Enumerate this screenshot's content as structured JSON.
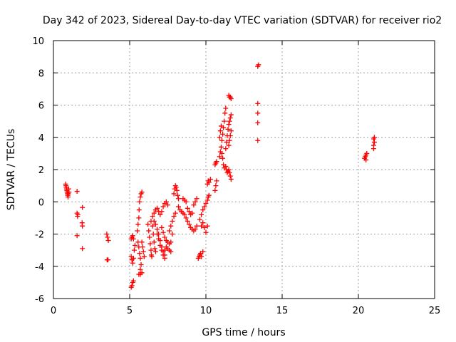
{
  "chart_data": {
    "type": "scatter",
    "title": "Day 342 of 2023, Sidereal Day-to-day VTEC variation (SDTVAR) for receiver rio2",
    "xlabel": "GPS time / hours",
    "ylabel": "SDTVAR / TECUs",
    "xlim": [
      0,
      25
    ],
    "ylim": [
      -6,
      10
    ],
    "xticks": [
      "0",
      "5",
      "10",
      "15",
      "20",
      "25"
    ],
    "yticks": [
      "-6",
      "-4",
      "-2",
      "0",
      "2",
      "4",
      "6",
      "8",
      "10"
    ],
    "grid": true,
    "marker": "+",
    "color": "#ff0000",
    "series": [
      {
        "name": "SDTVAR",
        "points": [
          [
            0.8,
            1.1
          ],
          [
            0.82,
            1.0
          ],
          [
            0.84,
            0.9
          ],
          [
            0.86,
            0.8
          ],
          [
            0.88,
            0.7
          ],
          [
            0.9,
            0.6
          ],
          [
            0.92,
            0.5
          ],
          [
            0.94,
            0.4
          ],
          [
            0.96,
            0.3
          ],
          [
            0.98,
            0.5
          ],
          [
            1.0,
            0.8
          ],
          [
            1.02,
            0.6
          ],
          [
            1.55,
            0.65
          ],
          [
            1.55,
            -0.7
          ],
          [
            1.58,
            -0.9
          ],
          [
            1.6,
            -0.8
          ],
          [
            1.55,
            -2.1
          ],
          [
            1.9,
            -0.35
          ],
          [
            1.88,
            -1.3
          ],
          [
            1.9,
            -1.5
          ],
          [
            1.9,
            -2.9
          ],
          [
            3.5,
            -2.0
          ],
          [
            3.55,
            -2.2
          ],
          [
            3.6,
            -2.4
          ],
          [
            3.52,
            -3.6
          ],
          [
            3.58,
            -3.6
          ],
          [
            5.1,
            -2.3
          ],
          [
            5.15,
            -2.2
          ],
          [
            5.2,
            -2.1
          ],
          [
            5.25,
            -2.3
          ],
          [
            5.1,
            -3.4
          ],
          [
            5.15,
            -3.6
          ],
          [
            5.2,
            -3.8
          ],
          [
            5.25,
            -3.5
          ],
          [
            5.3,
            -3.0
          ],
          [
            5.35,
            -2.7
          ],
          [
            5.1,
            -5.3
          ],
          [
            5.15,
            -5.2
          ],
          [
            5.2,
            -5.0
          ],
          [
            5.25,
            -4.9
          ],
          [
            5.5,
            -1.8
          ],
          [
            5.55,
            -1.4
          ],
          [
            5.6,
            -1.0
          ],
          [
            5.62,
            -0.5
          ],
          [
            5.65,
            0.0
          ],
          [
            5.7,
            0.3
          ],
          [
            5.75,
            0.5
          ],
          [
            5.8,
            0.6
          ],
          [
            5.55,
            -2.5
          ],
          [
            5.6,
            -2.8
          ],
          [
            5.65,
            -3.2
          ],
          [
            5.7,
            -3.5
          ],
          [
            5.75,
            -3.9
          ],
          [
            5.7,
            -4.2
          ],
          [
            5.6,
            -4.5
          ],
          [
            5.7,
            -4.5
          ],
          [
            5.8,
            -4.4
          ],
          [
            5.8,
            -2.5
          ],
          [
            5.85,
            -2.8
          ],
          [
            5.9,
            -3.1
          ],
          [
            5.95,
            -3.4
          ],
          [
            6.2,
            -1.4
          ],
          [
            6.25,
            -1.8
          ],
          [
            6.3,
            -2.2
          ],
          [
            6.35,
            -2.6
          ],
          [
            6.4,
            -3.0
          ],
          [
            6.42,
            -3.3
          ],
          [
            6.45,
            -3.4
          ],
          [
            6.4,
            -1.2
          ],
          [
            6.5,
            -0.9
          ],
          [
            6.6,
            -0.7
          ],
          [
            6.7,
            -0.5
          ],
          [
            6.8,
            -0.4
          ],
          [
            6.9,
            -0.6
          ],
          [
            6.5,
            -1.5
          ],
          [
            6.55,
            -2.0
          ],
          [
            6.6,
            -2.5
          ],
          [
            6.65,
            -2.9
          ],
          [
            6.7,
            -3.1
          ],
          [
            6.6,
            -1.2
          ],
          [
            6.7,
            -1.4
          ],
          [
            6.8,
            -1.7
          ],
          [
            6.9,
            -2.0
          ],
          [
            7.0,
            -2.4
          ],
          [
            7.1,
            -2.8
          ],
          [
            7.2,
            -3.1
          ],
          [
            7.3,
            -3.3
          ],
          [
            6.8,
            -2.0
          ],
          [
            6.9,
            -2.3
          ],
          [
            7.0,
            -2.7
          ],
          [
            7.1,
            -3.0
          ],
          [
            7.2,
            -3.3
          ],
          [
            7.3,
            -3.5
          ],
          [
            7.0,
            -0.8
          ],
          [
            7.1,
            -0.6
          ],
          [
            7.2,
            -0.3
          ],
          [
            7.3,
            -0.1
          ],
          [
            7.4,
            0.0
          ],
          [
            7.5,
            -0.2
          ],
          [
            7.1,
            -1.6
          ],
          [
            7.2,
            -1.9
          ],
          [
            7.3,
            -2.2
          ],
          [
            7.4,
            -2.4
          ],
          [
            7.5,
            -2.5
          ],
          [
            7.6,
            -2.6
          ],
          [
            7.7,
            -2.5
          ],
          [
            7.8,
            -2.0
          ],
          [
            7.3,
            -3.0
          ],
          [
            7.4,
            -2.8
          ],
          [
            7.5,
            -2.9
          ],
          [
            7.6,
            -3.0
          ],
          [
            7.7,
            -3.1
          ],
          [
            7.6,
            -1.8
          ],
          [
            7.7,
            -1.5
          ],
          [
            7.8,
            -1.2
          ],
          [
            7.9,
            -0.9
          ],
          [
            8.0,
            -0.7
          ],
          [
            7.9,
            0.5
          ],
          [
            7.95,
            0.8
          ],
          [
            8.0,
            1.0
          ],
          [
            8.05,
            0.9
          ],
          [
            8.1,
            0.7
          ],
          [
            8.15,
            0.4
          ],
          [
            8.2,
            0.2
          ],
          [
            8.2,
            -0.3
          ],
          [
            8.3,
            -0.5
          ],
          [
            8.4,
            -0.6
          ],
          [
            8.5,
            -0.7
          ],
          [
            8.5,
            0.2
          ],
          [
            8.6,
            0.1
          ],
          [
            8.7,
            0.0
          ],
          [
            8.6,
            -0.8
          ],
          [
            8.7,
            -1.0
          ],
          [
            8.8,
            -1.2
          ],
          [
            8.9,
            -1.4
          ],
          [
            9.0,
            -1.6
          ],
          [
            9.1,
            -1.7
          ],
          [
            9.2,
            -1.8
          ],
          [
            9.3,
            -1.7
          ],
          [
            9.4,
            -1.5
          ],
          [
            8.8,
            -0.4
          ],
          [
            8.9,
            -0.6
          ],
          [
            9.0,
            -0.8
          ],
          [
            9.1,
            -0.7
          ],
          [
            9.2,
            -0.2
          ],
          [
            9.3,
            0.0
          ],
          [
            9.4,
            0.2
          ],
          [
            9.5,
            -3.5
          ],
          [
            9.55,
            -3.4
          ],
          [
            9.6,
            -3.3
          ],
          [
            9.65,
            -3.2
          ],
          [
            9.7,
            -3.4
          ],
          [
            9.8,
            -3.1
          ],
          [
            9.6,
            -1.1
          ],
          [
            9.7,
            -0.8
          ],
          [
            9.8,
            -0.5
          ],
          [
            9.9,
            -0.3
          ],
          [
            10.0,
            -0.1
          ],
          [
            10.1,
            0.1
          ],
          [
            10.15,
            0.3
          ],
          [
            10.2,
            0.4
          ],
          [
            9.7,
            -1.5
          ],
          [
            9.8,
            -1.3
          ],
          [
            9.9,
            -1.6
          ],
          [
            10.0,
            -1.9
          ],
          [
            10.1,
            -1.5
          ],
          [
            10.1,
            1.1
          ],
          [
            10.15,
            1.3
          ],
          [
            10.2,
            1.2
          ],
          [
            10.3,
            1.4
          ],
          [
            10.6,
            0.7
          ],
          [
            10.65,
            1.0
          ],
          [
            10.7,
            1.3
          ],
          [
            10.6,
            2.3
          ],
          [
            10.65,
            2.4
          ],
          [
            10.7,
            2.5
          ],
          [
            10.9,
            2.8
          ],
          [
            10.95,
            3.1
          ],
          [
            11.0,
            3.4
          ],
          [
            11.05,
            3.8
          ],
          [
            11.1,
            4.2
          ],
          [
            11.15,
            4.6
          ],
          [
            11.2,
            5.0
          ],
          [
            11.25,
            5.5
          ],
          [
            11.3,
            5.8
          ],
          [
            10.9,
            4.0
          ],
          [
            10.95,
            4.4
          ],
          [
            11.0,
            4.7
          ],
          [
            11.05,
            3.0
          ],
          [
            11.1,
            2.7
          ],
          [
            11.15,
            2.3
          ],
          [
            11.2,
            2.1
          ],
          [
            11.3,
            3.3
          ],
          [
            11.35,
            3.7
          ],
          [
            11.4,
            4.1
          ],
          [
            11.45,
            4.5
          ],
          [
            11.5,
            4.8
          ],
          [
            11.55,
            5.0
          ],
          [
            11.6,
            5.2
          ],
          [
            11.65,
            5.4
          ],
          [
            11.3,
            2.2
          ],
          [
            11.35,
            2.0
          ],
          [
            11.4,
            1.8
          ],
          [
            11.45,
            1.9
          ],
          [
            11.5,
            6.6
          ],
          [
            11.55,
            6.5
          ],
          [
            11.6,
            6.5
          ],
          [
            11.65,
            6.4
          ],
          [
            11.5,
            3.5
          ],
          [
            11.55,
            3.8
          ],
          [
            11.6,
            4.1
          ],
          [
            11.65,
            4.4
          ],
          [
            11.5,
            2.0
          ],
          [
            11.55,
            1.8
          ],
          [
            11.6,
            1.6
          ],
          [
            11.65,
            1.4
          ],
          [
            13.4,
            8.4
          ],
          [
            13.45,
            8.5
          ],
          [
            13.4,
            6.1
          ],
          [
            13.4,
            5.5
          ],
          [
            13.4,
            4.9
          ],
          [
            13.4,
            3.8
          ],
          [
            20.4,
            2.7
          ],
          [
            20.45,
            2.8
          ],
          [
            20.5,
            2.9
          ],
          [
            20.55,
            3.0
          ],
          [
            20.5,
            2.6
          ],
          [
            21.0,
            3.3
          ],
          [
            21.0,
            3.5
          ],
          [
            21.05,
            3.7
          ],
          [
            21.0,
            3.9
          ],
          [
            21.05,
            4.0
          ]
        ]
      }
    ]
  }
}
